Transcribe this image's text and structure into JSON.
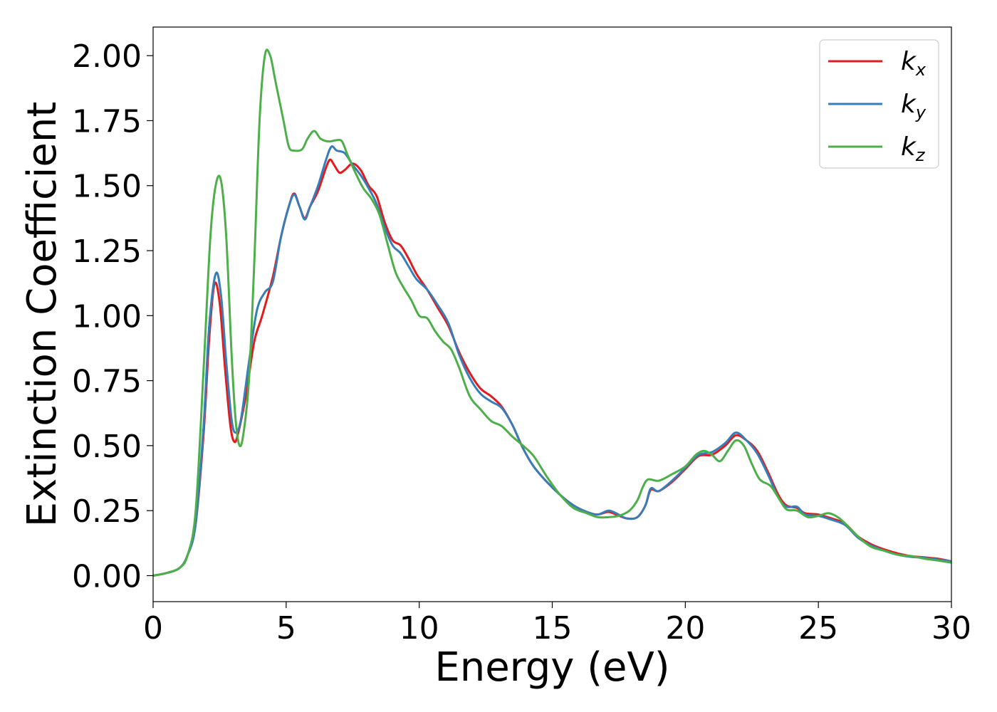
{
  "chart_data": {
    "type": "line",
    "title": "",
    "xlabel": "Energy (eV)",
    "ylabel": "Extinction Coefficient",
    "xlim": [
      0,
      30
    ],
    "ylim": [
      -0.1,
      2.11
    ],
    "xticks": [
      0,
      5,
      10,
      15,
      20,
      25,
      30
    ],
    "xtick_labels": [
      "0",
      "5",
      "10",
      "15",
      "20",
      "25",
      "30"
    ],
    "yticks": [
      0,
      0.25,
      0.5,
      0.75,
      1.0,
      1.25,
      1.5,
      1.75,
      2.0
    ],
    "ytick_labels": [
      "0.00",
      "0.25",
      "0.50",
      "0.75",
      "1.00",
      "1.25",
      "1.50",
      "1.75",
      "2.00"
    ],
    "grid": false,
    "legend": "top-right",
    "series": [
      {
        "name": "k",
        "subscript": "x",
        "color": "#e41a1c",
        "points": [
          [
            0,
            0
          ],
          [
            0.5,
            0.01
          ],
          [
            1,
            0.03
          ],
          [
            1.3,
            0.08
          ],
          [
            1.6,
            0.2
          ],
          [
            1.9,
            0.55
          ],
          [
            2.1,
            0.9
          ],
          [
            2.3,
            1.12
          ],
          [
            2.5,
            1.05
          ],
          [
            2.7,
            0.8
          ],
          [
            2.9,
            0.58
          ],
          [
            3.05,
            0.515
          ],
          [
            3.2,
            0.55
          ],
          [
            3.5,
            0.7
          ],
          [
            3.8,
            0.9
          ],
          [
            4.1,
            1.0
          ],
          [
            4.5,
            1.15
          ],
          [
            4.8,
            1.3
          ],
          [
            5.1,
            1.42
          ],
          [
            5.3,
            1.47
          ],
          [
            5.5,
            1.42
          ],
          [
            5.7,
            1.375
          ],
          [
            5.9,
            1.42
          ],
          [
            6.2,
            1.48
          ],
          [
            6.5,
            1.57
          ],
          [
            6.65,
            1.6
          ],
          [
            6.8,
            1.58
          ],
          [
            7.0,
            1.55
          ],
          [
            7.2,
            1.56
          ],
          [
            7.5,
            1.585
          ],
          [
            7.8,
            1.56
          ],
          [
            8.1,
            1.5
          ],
          [
            8.4,
            1.46
          ],
          [
            8.7,
            1.36
          ],
          [
            9.0,
            1.29
          ],
          [
            9.3,
            1.27
          ],
          [
            9.6,
            1.22
          ],
          [
            9.9,
            1.16
          ],
          [
            10.3,
            1.1
          ],
          [
            10.7,
            1.03
          ],
          [
            11.1,
            0.96
          ],
          [
            11.5,
            0.86
          ],
          [
            11.9,
            0.78
          ],
          [
            12.3,
            0.72
          ],
          [
            12.7,
            0.69
          ],
          [
            13.1,
            0.65
          ],
          [
            13.5,
            0.58
          ],
          [
            13.9,
            0.49
          ],
          [
            14.3,
            0.42
          ],
          [
            14.8,
            0.36
          ],
          [
            15.3,
            0.31
          ],
          [
            15.8,
            0.27
          ],
          [
            16.3,
            0.245
          ],
          [
            16.7,
            0.235
          ],
          [
            17.1,
            0.245
          ],
          [
            17.4,
            0.235
          ],
          [
            17.8,
            0.22
          ],
          [
            18.2,
            0.225
          ],
          [
            18.5,
            0.27
          ],
          [
            18.7,
            0.33
          ],
          [
            19.0,
            0.325
          ],
          [
            19.5,
            0.36
          ],
          [
            20.0,
            0.41
          ],
          [
            20.5,
            0.46
          ],
          [
            21.0,
            0.465
          ],
          [
            21.5,
            0.5
          ],
          [
            21.9,
            0.54
          ],
          [
            22.3,
            0.52
          ],
          [
            22.7,
            0.48
          ],
          [
            23.1,
            0.4
          ],
          [
            23.5,
            0.31
          ],
          [
            23.8,
            0.27
          ],
          [
            24.2,
            0.26
          ],
          [
            24.5,
            0.24
          ],
          [
            25.0,
            0.235
          ],
          [
            25.5,
            0.22
          ],
          [
            26.0,
            0.2
          ],
          [
            26.5,
            0.15
          ],
          [
            27.0,
            0.12
          ],
          [
            27.5,
            0.1
          ],
          [
            28.0,
            0.085
          ],
          [
            28.5,
            0.075
          ],
          [
            29.0,
            0.07
          ],
          [
            29.5,
            0.065
          ],
          [
            30,
            0.055
          ]
        ]
      },
      {
        "name": "k",
        "subscript": "y",
        "color": "#377eb8",
        "points": [
          [
            0,
            0
          ],
          [
            0.5,
            0.01
          ],
          [
            1,
            0.03
          ],
          [
            1.3,
            0.08
          ],
          [
            1.6,
            0.2
          ],
          [
            1.9,
            0.58
          ],
          [
            2.1,
            0.95
          ],
          [
            2.35,
            1.16
          ],
          [
            2.55,
            1.08
          ],
          [
            2.75,
            0.82
          ],
          [
            2.95,
            0.6
          ],
          [
            3.1,
            0.55
          ],
          [
            3.3,
            0.6
          ],
          [
            3.6,
            0.82
          ],
          [
            3.9,
            1.02
          ],
          [
            4.2,
            1.09
          ],
          [
            4.5,
            1.13
          ],
          [
            4.8,
            1.3
          ],
          [
            5.1,
            1.42
          ],
          [
            5.3,
            1.465
          ],
          [
            5.5,
            1.42
          ],
          [
            5.7,
            1.37
          ],
          [
            5.9,
            1.42
          ],
          [
            6.2,
            1.5
          ],
          [
            6.5,
            1.6
          ],
          [
            6.7,
            1.65
          ],
          [
            6.9,
            1.635
          ],
          [
            7.2,
            1.625
          ],
          [
            7.5,
            1.58
          ],
          [
            7.8,
            1.54
          ],
          [
            8.1,
            1.49
          ],
          [
            8.4,
            1.43
          ],
          [
            8.7,
            1.34
          ],
          [
            9.0,
            1.27
          ],
          [
            9.3,
            1.24
          ],
          [
            9.6,
            1.19
          ],
          [
            9.9,
            1.14
          ],
          [
            10.3,
            1.1
          ],
          [
            10.7,
            1.04
          ],
          [
            11.1,
            0.97
          ],
          [
            11.5,
            0.85
          ],
          [
            11.9,
            0.76
          ],
          [
            12.3,
            0.7
          ],
          [
            12.7,
            0.67
          ],
          [
            13.1,
            0.645
          ],
          [
            13.5,
            0.58
          ],
          [
            13.9,
            0.49
          ],
          [
            14.3,
            0.42
          ],
          [
            14.8,
            0.36
          ],
          [
            15.3,
            0.31
          ],
          [
            15.8,
            0.27
          ],
          [
            16.3,
            0.245
          ],
          [
            16.7,
            0.235
          ],
          [
            17.1,
            0.25
          ],
          [
            17.4,
            0.24
          ],
          [
            17.8,
            0.22
          ],
          [
            18.2,
            0.225
          ],
          [
            18.5,
            0.27
          ],
          [
            18.7,
            0.335
          ],
          [
            19.0,
            0.325
          ],
          [
            19.5,
            0.365
          ],
          [
            20.0,
            0.415
          ],
          [
            20.5,
            0.465
          ],
          [
            21.0,
            0.475
          ],
          [
            21.5,
            0.51
          ],
          [
            21.9,
            0.55
          ],
          [
            22.3,
            0.52
          ],
          [
            22.7,
            0.47
          ],
          [
            23.1,
            0.39
          ],
          [
            23.5,
            0.3
          ],
          [
            23.8,
            0.265
          ],
          [
            24.2,
            0.265
          ],
          [
            24.5,
            0.235
          ],
          [
            25.0,
            0.23
          ],
          [
            25.5,
            0.215
          ],
          [
            26.0,
            0.195
          ],
          [
            26.5,
            0.145
          ],
          [
            27.0,
            0.115
          ],
          [
            27.5,
            0.095
          ],
          [
            28.0,
            0.08
          ],
          [
            28.5,
            0.072
          ],
          [
            29.0,
            0.068
          ],
          [
            29.5,
            0.062
          ],
          [
            30,
            0.055
          ]
        ]
      },
      {
        "name": "k",
        "subscript": "z",
        "color": "#4daf4a",
        "points": [
          [
            0,
            0
          ],
          [
            0.5,
            0.01
          ],
          [
            1,
            0.03
          ],
          [
            1.3,
            0.08
          ],
          [
            1.6,
            0.25
          ],
          [
            1.9,
            0.8
          ],
          [
            2.15,
            1.3
          ],
          [
            2.35,
            1.5
          ],
          [
            2.55,
            1.52
          ],
          [
            2.75,
            1.3
          ],
          [
            2.95,
            0.85
          ],
          [
            3.1,
            0.6
          ],
          [
            3.25,
            0.5
          ],
          [
            3.4,
            0.55
          ],
          [
            3.6,
            0.75
          ],
          [
            3.8,
            1.2
          ],
          [
            4.0,
            1.75
          ],
          [
            4.2,
            2.0
          ],
          [
            4.4,
            2.0
          ],
          [
            4.6,
            1.9
          ],
          [
            4.9,
            1.75
          ],
          [
            5.1,
            1.65
          ],
          [
            5.3,
            1.635
          ],
          [
            5.6,
            1.64
          ],
          [
            5.8,
            1.68
          ],
          [
            6.05,
            1.71
          ],
          [
            6.3,
            1.68
          ],
          [
            6.6,
            1.67
          ],
          [
            6.9,
            1.675
          ],
          [
            7.1,
            1.67
          ],
          [
            7.3,
            1.62
          ],
          [
            7.6,
            1.55
          ],
          [
            7.9,
            1.49
          ],
          [
            8.2,
            1.45
          ],
          [
            8.5,
            1.39
          ],
          [
            8.8,
            1.28
          ],
          [
            9.1,
            1.17
          ],
          [
            9.4,
            1.11
          ],
          [
            9.7,
            1.06
          ],
          [
            10.0,
            1.0
          ],
          [
            10.3,
            0.99
          ],
          [
            10.6,
            0.94
          ],
          [
            10.9,
            0.9
          ],
          [
            11.2,
            0.87
          ],
          [
            11.5,
            0.8
          ],
          [
            11.9,
            0.69
          ],
          [
            12.3,
            0.64
          ],
          [
            12.7,
            0.595
          ],
          [
            13.1,
            0.575
          ],
          [
            13.5,
            0.535
          ],
          [
            13.9,
            0.5
          ],
          [
            14.3,
            0.46
          ],
          [
            14.8,
            0.38
          ],
          [
            15.3,
            0.31
          ],
          [
            15.8,
            0.26
          ],
          [
            16.3,
            0.24
          ],
          [
            16.7,
            0.225
          ],
          [
            17.1,
            0.225
          ],
          [
            17.5,
            0.23
          ],
          [
            17.9,
            0.25
          ],
          [
            18.2,
            0.29
          ],
          [
            18.4,
            0.34
          ],
          [
            18.6,
            0.37
          ],
          [
            19.0,
            0.365
          ],
          [
            19.5,
            0.39
          ],
          [
            20.0,
            0.42
          ],
          [
            20.4,
            0.465
          ],
          [
            20.7,
            0.48
          ],
          [
            21.0,
            0.465
          ],
          [
            21.3,
            0.44
          ],
          [
            21.6,
            0.48
          ],
          [
            21.9,
            0.52
          ],
          [
            22.2,
            0.5
          ],
          [
            22.5,
            0.43
          ],
          [
            22.8,
            0.37
          ],
          [
            23.2,
            0.345
          ],
          [
            23.5,
            0.3
          ],
          [
            23.8,
            0.255
          ],
          [
            24.2,
            0.25
          ],
          [
            24.6,
            0.225
          ],
          [
            25.0,
            0.23
          ],
          [
            25.4,
            0.24
          ],
          [
            25.8,
            0.22
          ],
          [
            26.2,
            0.18
          ],
          [
            26.6,
            0.14
          ],
          [
            27.0,
            0.11
          ],
          [
            27.5,
            0.095
          ],
          [
            28.0,
            0.08
          ],
          [
            28.5,
            0.075
          ],
          [
            29.0,
            0.065
          ],
          [
            29.5,
            0.058
          ],
          [
            30,
            0.05
          ]
        ]
      }
    ]
  }
}
